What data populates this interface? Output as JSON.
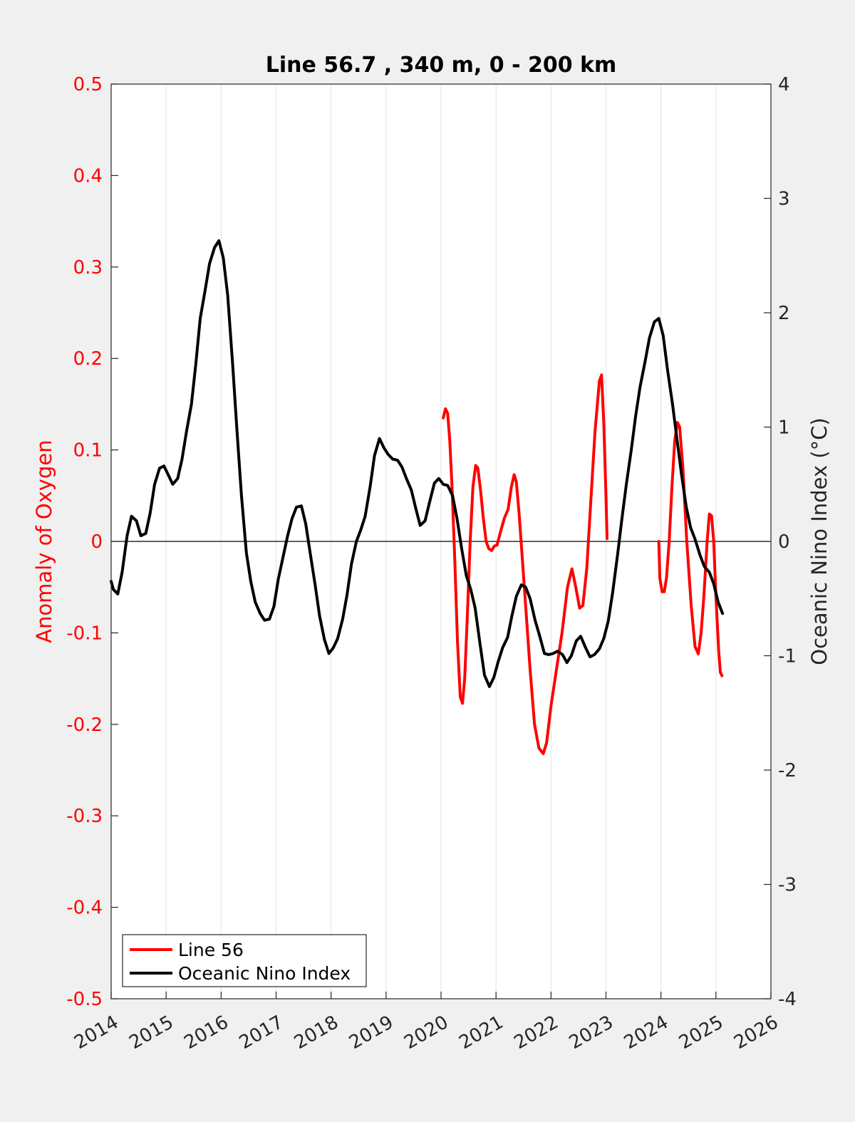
{
  "chart_data": {
    "type": "line",
    "title": "Line 56.7 , 340 m, 0 - 200 km",
    "xlabel": "",
    "xlim": [
      2014,
      2026
    ],
    "x_ticks": [
      "2014",
      "2015",
      "2016",
      "2017",
      "2018",
      "2019",
      "2020",
      "2021",
      "2022",
      "2023",
      "2024",
      "2025",
      "2026"
    ],
    "y_left": {
      "label": "Anomaly of Oxygen",
      "lim": [
        -0.5,
        0.5
      ],
      "ticks": [
        "0.5",
        "0.4",
        "0.3",
        "0.2",
        "0.1",
        "0",
        "-0.1",
        "-0.2",
        "-0.3",
        "-0.4",
        "-0.5"
      ],
      "tick_values": [
        0.5,
        0.4,
        0.3,
        0.2,
        0.1,
        0,
        -0.1,
        -0.2,
        -0.3,
        -0.4,
        -0.5
      ]
    },
    "y_right": {
      "label": "Oceanic Nino Index (°C)",
      "lim": [
        -4,
        4
      ],
      "ticks": [
        "4",
        "3",
        "2",
        "1",
        "0",
        "-1",
        "-2",
        "-3",
        "-4"
      ],
      "tick_values": [
        4,
        3,
        2,
        1,
        0,
        -1,
        -2,
        -3,
        -4
      ]
    },
    "grid": "vertical",
    "legend_placement": "bottom-left",
    "series": [
      {
        "name": "Line 56",
        "axis": "left",
        "color": "#ff0000",
        "segments": [
          [
            [
              2020.04,
              0.135
            ],
            [
              2020.08,
              0.145
            ],
            [
              2020.12,
              0.14
            ],
            [
              2020.16,
              0.11
            ],
            [
              2020.2,
              0.06
            ],
            [
              2020.25,
              -0.02
            ],
            [
              2020.3,
              -0.11
            ],
            [
              2020.35,
              -0.17
            ],
            [
              2020.39,
              -0.177
            ],
            [
              2020.43,
              -0.15
            ],
            [
              2020.48,
              -0.08
            ],
            [
              2020.53,
              0.0
            ],
            [
              2020.58,
              0.06
            ],
            [
              2020.63,
              0.083
            ],
            [
              2020.67,
              0.08
            ],
            [
              2020.72,
              0.055
            ],
            [
              2020.77,
              0.025
            ],
            [
              2020.82,
              0.0
            ],
            [
              2020.87,
              -0.008
            ],
            [
              2020.92,
              -0.01
            ],
            [
              2020.97,
              -0.005
            ],
            [
              2021.02,
              -0.004
            ],
            [
              2021.08,
              0.01
            ],
            [
              2021.15,
              0.025
            ],
            [
              2021.22,
              0.035
            ],
            [
              2021.28,
              0.06
            ],
            [
              2021.33,
              0.073
            ],
            [
              2021.37,
              0.065
            ],
            [
              2021.42,
              0.03
            ],
            [
              2021.48,
              -0.02
            ],
            [
              2021.55,
              -0.08
            ],
            [
              2021.62,
              -0.14
            ],
            [
              2021.7,
              -0.2
            ],
            [
              2021.78,
              -0.226
            ],
            [
              2021.86,
              -0.232
            ],
            [
              2021.92,
              -0.22
            ],
            [
              2022.0,
              -0.18
            ],
            [
              2022.1,
              -0.14
            ],
            [
              2022.2,
              -0.1
            ],
            [
              2022.3,
              -0.05
            ],
            [
              2022.38,
              -0.03
            ],
            [
              2022.45,
              -0.05
            ],
            [
              2022.52,
              -0.073
            ],
            [
              2022.58,
              -0.07
            ],
            [
              2022.65,
              -0.03
            ],
            [
              2022.72,
              0.04
            ],
            [
              2022.8,
              0.12
            ],
            [
              2022.88,
              0.175
            ],
            [
              2022.92,
              0.182
            ],
            [
              2022.96,
              0.13
            ],
            [
              2023.0,
              0.05
            ],
            [
              2023.02,
              0.003
            ]
          ],
          [
            [
              2023.96,
              0.0
            ],
            [
              2023.98,
              -0.04
            ],
            [
              2024.02,
              -0.055
            ],
            [
              2024.06,
              -0.055
            ],
            [
              2024.1,
              -0.04
            ],
            [
              2024.15,
              0.0
            ],
            [
              2024.2,
              0.06
            ],
            [
              2024.25,
              0.11
            ],
            [
              2024.3,
              0.13
            ],
            [
              2024.34,
              0.125
            ],
            [
              2024.4,
              0.08
            ],
            [
              2024.47,
              0.0
            ],
            [
              2024.55,
              -0.07
            ],
            [
              2024.62,
              -0.115
            ],
            [
              2024.68,
              -0.123
            ],
            [
              2024.73,
              -0.1
            ],
            [
              2024.78,
              -0.06
            ],
            [
              2024.84,
              0.0
            ],
            [
              2024.88,
              0.03
            ],
            [
              2024.92,
              0.028
            ],
            [
              2024.96,
              0.0
            ],
            [
              2025.0,
              -0.06
            ],
            [
              2025.05,
              -0.12
            ],
            [
              2025.08,
              -0.143
            ],
            [
              2025.11,
              -0.147
            ]
          ]
        ]
      },
      {
        "name": "Oceanic Nino Index",
        "axis": "right",
        "color": "#000000",
        "segments": [
          [
            [
              2014.0,
              -0.35
            ],
            [
              2014.04,
              -0.42
            ],
            [
              2014.12,
              -0.46
            ],
            [
              2014.2,
              -0.27
            ],
            [
              2014.29,
              0.05
            ],
            [
              2014.37,
              0.22
            ],
            [
              2014.46,
              0.18
            ],
            [
              2014.54,
              0.05
            ],
            [
              2014.63,
              0.07
            ],
            [
              2014.71,
              0.25
            ],
            [
              2014.79,
              0.5
            ],
            [
              2014.88,
              0.64
            ],
            [
              2014.96,
              0.66
            ],
            [
              2015.04,
              0.58
            ],
            [
              2015.12,
              0.5
            ],
            [
              2015.21,
              0.55
            ],
            [
              2015.29,
              0.72
            ],
            [
              2015.37,
              0.96
            ],
            [
              2015.46,
              1.2
            ],
            [
              2015.54,
              1.55
            ],
            [
              2015.62,
              1.95
            ],
            [
              2015.71,
              2.2
            ],
            [
              2015.79,
              2.43
            ],
            [
              2015.88,
              2.57
            ],
            [
              2015.96,
              2.63
            ],
            [
              2016.04,
              2.48
            ],
            [
              2016.12,
              2.15
            ],
            [
              2016.21,
              1.55
            ],
            [
              2016.29,
              0.96
            ],
            [
              2016.37,
              0.4
            ],
            [
              2016.46,
              -0.1
            ],
            [
              2016.54,
              -0.35
            ],
            [
              2016.62,
              -0.53
            ],
            [
              2016.71,
              -0.63
            ],
            [
              2016.79,
              -0.69
            ],
            [
              2016.88,
              -0.68
            ],
            [
              2016.96,
              -0.57
            ],
            [
              2017.04,
              -0.33
            ],
            [
              2017.12,
              -0.15
            ],
            [
              2017.21,
              0.05
            ],
            [
              2017.29,
              0.2
            ],
            [
              2017.37,
              0.3
            ],
            [
              2017.46,
              0.31
            ],
            [
              2017.54,
              0.15
            ],
            [
              2017.62,
              -0.1
            ],
            [
              2017.71,
              -0.38
            ],
            [
              2017.79,
              -0.65
            ],
            [
              2017.88,
              -0.86
            ],
            [
              2017.96,
              -0.98
            ],
            [
              2018.04,
              -0.93
            ],
            [
              2018.12,
              -0.85
            ],
            [
              2018.21,
              -0.68
            ],
            [
              2018.29,
              -0.47
            ],
            [
              2018.37,
              -0.2
            ],
            [
              2018.46,
              0.0
            ],
            [
              2018.54,
              0.1
            ],
            [
              2018.62,
              0.22
            ],
            [
              2018.71,
              0.48
            ],
            [
              2018.79,
              0.75
            ],
            [
              2018.88,
              0.9
            ],
            [
              2018.96,
              0.82
            ],
            [
              2019.04,
              0.76
            ],
            [
              2019.12,
              0.72
            ],
            [
              2019.21,
              0.71
            ],
            [
              2019.29,
              0.65
            ],
            [
              2019.37,
              0.55
            ],
            [
              2019.46,
              0.45
            ],
            [
              2019.54,
              0.29
            ],
            [
              2019.62,
              0.14
            ],
            [
              2019.71,
              0.18
            ],
            [
              2019.79,
              0.34
            ],
            [
              2019.88,
              0.51
            ],
            [
              2019.96,
              0.55
            ],
            [
              2020.04,
              0.5
            ],
            [
              2020.12,
              0.49
            ],
            [
              2020.21,
              0.4
            ],
            [
              2020.29,
              0.2
            ],
            [
              2020.37,
              -0.05
            ],
            [
              2020.46,
              -0.3
            ],
            [
              2020.54,
              -0.42
            ],
            [
              2020.62,
              -0.58
            ],
            [
              2020.71,
              -0.9
            ],
            [
              2020.79,
              -1.17
            ],
            [
              2020.88,
              -1.27
            ],
            [
              2020.96,
              -1.19
            ],
            [
              2021.04,
              -1.05
            ],
            [
              2021.12,
              -0.93
            ],
            [
              2021.21,
              -0.84
            ],
            [
              2021.29,
              -0.65
            ],
            [
              2021.37,
              -0.48
            ],
            [
              2021.46,
              -0.38
            ],
            [
              2021.54,
              -0.4
            ],
            [
              2021.62,
              -0.5
            ],
            [
              2021.71,
              -0.69
            ],
            [
              2021.79,
              -0.82
            ],
            [
              2021.88,
              -0.98
            ],
            [
              2021.96,
              -0.99
            ],
            [
              2022.04,
              -0.98
            ],
            [
              2022.12,
              -0.96
            ],
            [
              2022.21,
              -0.99
            ],
            [
              2022.29,
              -1.06
            ],
            [
              2022.37,
              -1.0
            ],
            [
              2022.46,
              -0.87
            ],
            [
              2022.54,
              -0.83
            ],
            [
              2022.62,
              -0.92
            ],
            [
              2022.71,
              -1.01
            ],
            [
              2022.79,
              -0.99
            ],
            [
              2022.88,
              -0.94
            ],
            [
              2022.96,
              -0.85
            ],
            [
              2023.04,
              -0.7
            ],
            [
              2023.12,
              -0.45
            ],
            [
              2023.21,
              -0.12
            ],
            [
              2023.29,
              0.2
            ],
            [
              2023.37,
              0.5
            ],
            [
              2023.46,
              0.8
            ],
            [
              2023.54,
              1.1
            ],
            [
              2023.62,
              1.35
            ],
            [
              2023.71,
              1.57
            ],
            [
              2023.79,
              1.78
            ],
            [
              2023.88,
              1.92
            ],
            [
              2023.96,
              1.95
            ],
            [
              2024.04,
              1.8
            ],
            [
              2024.12,
              1.5
            ],
            [
              2024.21,
              1.2
            ],
            [
              2024.29,
              0.9
            ],
            [
              2024.37,
              0.6
            ],
            [
              2024.46,
              0.3
            ],
            [
              2024.54,
              0.12
            ],
            [
              2024.62,
              0.02
            ],
            [
              2024.71,
              -0.12
            ],
            [
              2024.79,
              -0.22
            ],
            [
              2024.88,
              -0.27
            ],
            [
              2024.96,
              -0.37
            ],
            [
              2025.04,
              -0.53
            ],
            [
              2025.12,
              -0.63
            ]
          ]
        ]
      }
    ]
  }
}
